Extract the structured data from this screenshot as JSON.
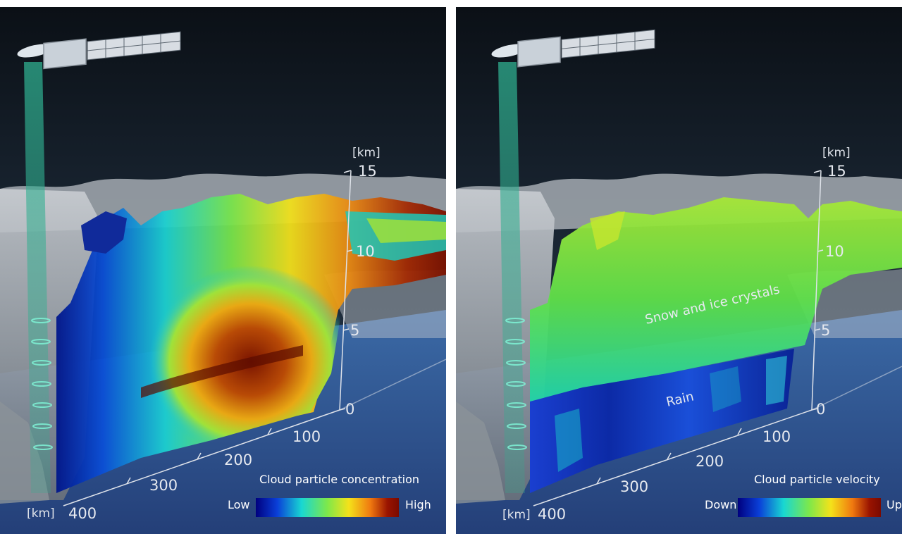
{
  "left": {
    "unit_top": "[km]",
    "unit_bottom": "[km]",
    "height_ticks": [
      "15",
      "10",
      "5",
      "0"
    ],
    "distance_ticks": [
      "100",
      "200",
      "300",
      "400"
    ],
    "legend": {
      "title": "Cloud particle concentration",
      "low": "Low",
      "high": "High"
    }
  },
  "right": {
    "unit_top": "[km]",
    "unit_bottom": "[km]",
    "height_ticks": [
      "15",
      "10",
      "5",
      "0"
    ],
    "distance_ticks": [
      "100",
      "200",
      "300",
      "400"
    ],
    "legend": {
      "title": "Cloud particle velocity",
      "low": "Down",
      "high": "Up"
    },
    "annotations": {
      "snow": "Snow and ice crystals",
      "rain": "Rain"
    }
  },
  "colors": {
    "sky_top": "#0c1117",
    "sky_bottom": "#24374a",
    "ocean": "#2c4f8a",
    "cloud": "#cfd3d8",
    "beam": "#2fae8f",
    "colorbar": [
      "#00007f",
      "#0a3fd8",
      "#18d7d2",
      "#7ee84a",
      "#f4e21a",
      "#f07a10",
      "#9a1400",
      "#7a0a00"
    ]
  }
}
